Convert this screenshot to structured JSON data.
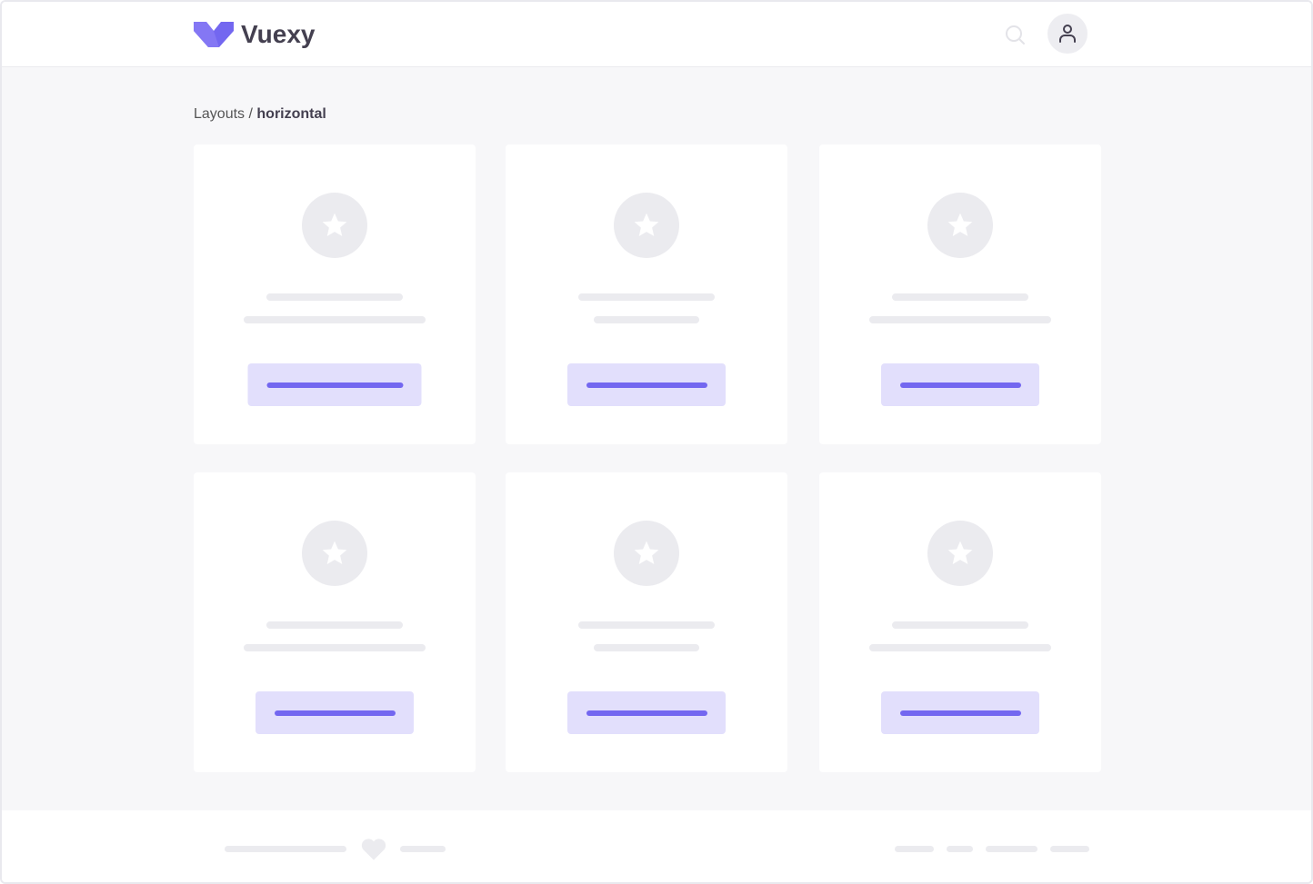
{
  "header": {
    "brand": "Vuexy",
    "brand_color": "#7367f0",
    "icons": [
      "search-icon",
      "user-icon"
    ]
  },
  "breadcrumb": {
    "parent": "Layouts",
    "separator": " / ",
    "current": "horizontal"
  },
  "cards": [
    {
      "icon": "star-icon",
      "line2": "long",
      "button": "wide"
    },
    {
      "icon": "star-icon",
      "line2": "short",
      "button": "normal"
    },
    {
      "icon": "star-icon",
      "line2": "long",
      "button": "normal"
    },
    {
      "icon": "star-icon",
      "line2": "long",
      "button": "normal"
    },
    {
      "icon": "star-icon",
      "line2": "short",
      "button": "normal"
    },
    {
      "icon": "star-icon",
      "line2": "long",
      "button": "normal"
    }
  ],
  "footer": {
    "icon": "heart-icon"
  }
}
